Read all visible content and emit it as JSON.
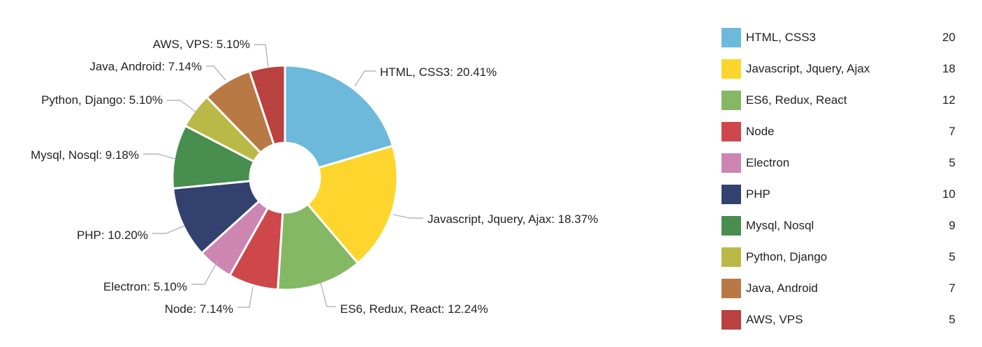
{
  "chart_data": {
    "type": "pie",
    "title": "",
    "categories": [
      "HTML, CSS3",
      "Javascript, Jquery, Ajax",
      "ES6, Redux, React",
      "Node",
      "Electron",
      "PHP",
      "Mysql, Nosql",
      "Python, Django",
      "Java, Android",
      "AWS, VPS"
    ],
    "values": [
      20,
      18,
      12,
      7,
      5,
      10,
      9,
      5,
      7,
      5
    ],
    "percent_labels": [
      "20.41%",
      "18.37%",
      "12.24%",
      "7.14%",
      "5.10%",
      "10.20%",
      "9.18%",
      "5.10%",
      "7.14%",
      "5.10%"
    ],
    "colors": [
      "#6cb9dc",
      "#fdd52d",
      "#85b864",
      "#cd474b",
      "#cd85b1",
      "#33416f",
      "#478e4f",
      "#bab947",
      "#b97945",
      "#b9413f"
    ],
    "donut": true,
    "legend_position": "right"
  }
}
